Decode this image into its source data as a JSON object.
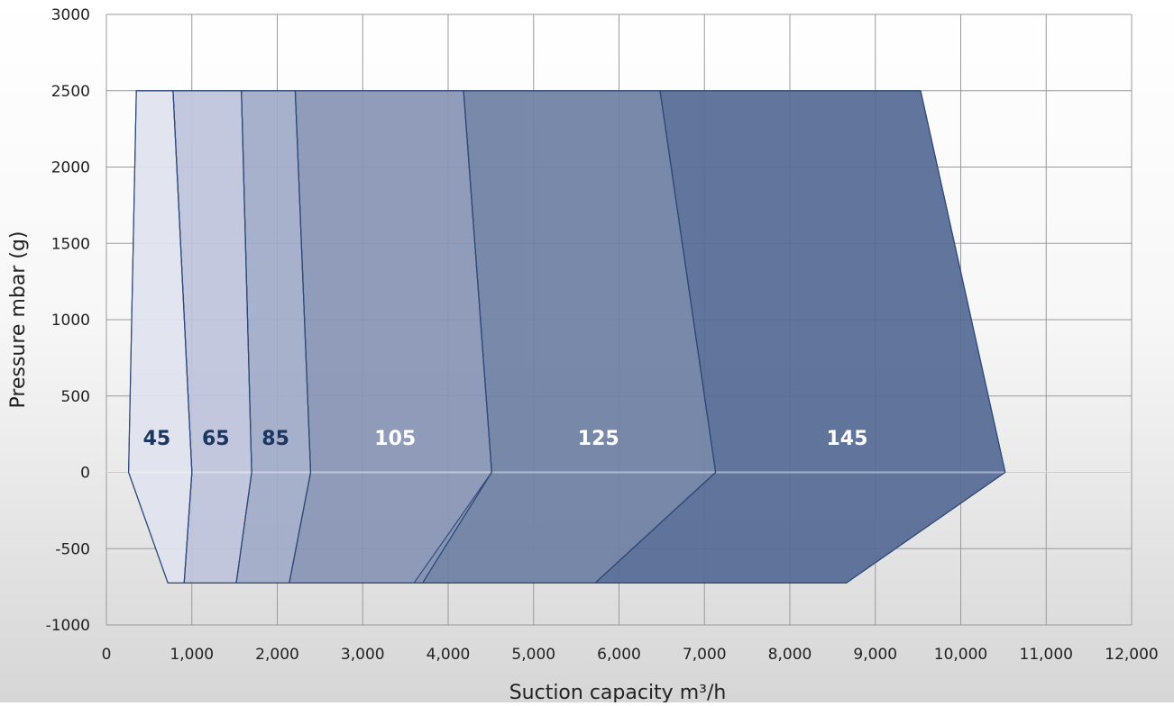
{
  "chart_data": {
    "type": "area",
    "xlabel": "Suction capacity m³/h",
    "ylabel": "Pressure mbar (g)",
    "xlim": [
      0,
      12000
    ],
    "ylim": [
      -1000,
      3000
    ],
    "grid": true,
    "x_ticks": [
      "0",
      "1,000",
      "2,000",
      "3,000",
      "4,000",
      "5,000",
      "6,000",
      "7,000",
      "8,000",
      "9,000",
      "10,000",
      "11,000",
      "12,000"
    ],
    "x_tick_values": [
      0,
      1000,
      2000,
      3000,
      4000,
      5000,
      6000,
      7000,
      8000,
      9000,
      10000,
      11000,
      12000
    ],
    "y_ticks": [
      "3000",
      "2500",
      "2000",
      "1500",
      "1000",
      "500",
      "0",
      "-500",
      "-1000"
    ],
    "y_tick_values": [
      3000,
      2500,
      2000,
      1500,
      1000,
      500,
      0,
      -500,
      -1000
    ],
    "regions": [
      {
        "name": "145",
        "fill": "#566a94",
        "label_color": "#ffffff",
        "label_point": [
          8670,
          180
        ],
        "points": [
          [
            6480,
            2500
          ],
          [
            9530,
            2500
          ],
          [
            10520,
            0
          ],
          [
            8660,
            -725
          ],
          [
            5720,
            -725
          ],
          [
            7130,
            0
          ]
        ]
      },
      {
        "name": "125",
        "fill": "#6f80a4",
        "label_color": "#ffffff",
        "label_point": [
          5760,
          180
        ],
        "points": [
          [
            4180,
            2500
          ],
          [
            6480,
            2500
          ],
          [
            7130,
            0
          ],
          [
            5720,
            -725
          ],
          [
            3600,
            -725
          ],
          [
            4510,
            0
          ]
        ]
      },
      {
        "name": "105",
        "fill": "#8894b5",
        "label_color": "#ffffff",
        "label_point": [
          3380,
          180
        ],
        "points": [
          [
            2210,
            2500
          ],
          [
            4180,
            2500
          ],
          [
            4510,
            0
          ],
          [
            3700,
            -725
          ],
          [
            2140,
            -725
          ],
          [
            2390,
            0
          ]
        ]
      },
      {
        "name": "85",
        "fill": "#a1abc8",
        "label_color": "#1b3661",
        "label_point": [
          1980,
          180
        ],
        "points": [
          [
            1580,
            2500
          ],
          [
            2210,
            2500
          ],
          [
            2390,
            0
          ],
          [
            2140,
            -725
          ],
          [
            1520,
            -725
          ],
          [
            1700,
            0
          ]
        ]
      },
      {
        "name": "65",
        "fill": "#bfc4db",
        "label_color": "#1b3661",
        "label_point": [
          1280,
          180
        ],
        "points": [
          [
            780,
            2500
          ],
          [
            1580,
            2500
          ],
          [
            1700,
            0
          ],
          [
            1520,
            -725
          ],
          [
            910,
            -725
          ],
          [
            1000,
            0
          ]
        ]
      },
      {
        "name": "45",
        "fill": "#e0e2ee",
        "label_color": "#1b3661",
        "label_point": [
          590,
          180
        ],
        "points": [
          [
            350,
            2500
          ],
          [
            780,
            2500
          ],
          [
            1000,
            0
          ],
          [
            910,
            -725
          ],
          [
            720,
            -725
          ],
          [
            260,
            0
          ]
        ]
      }
    ],
    "outline_color": "#2f4a78"
  }
}
